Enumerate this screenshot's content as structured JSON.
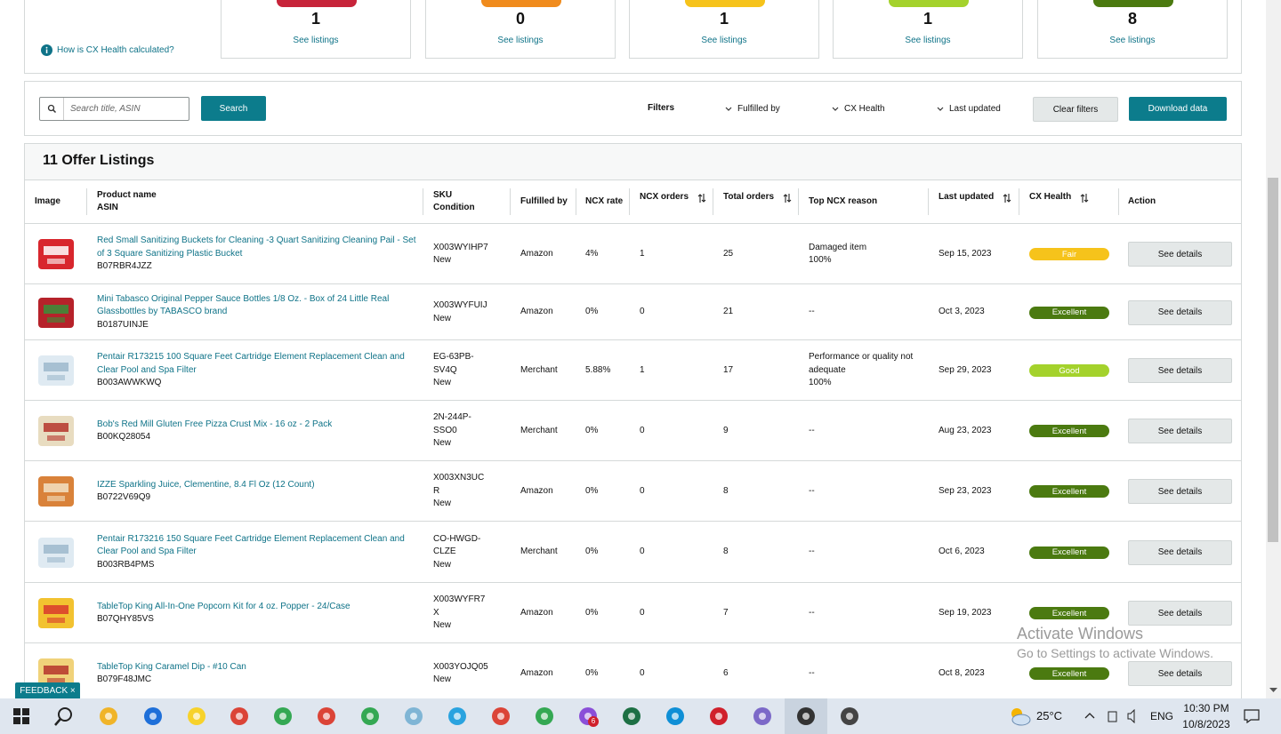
{
  "summary": {
    "help_link": "How is CX Health calculated?",
    "cards": [
      {
        "count": 1,
        "link": "See listings",
        "color": "#c7243a"
      },
      {
        "count": 0,
        "link": "See listings",
        "color": "#f08b1d"
      },
      {
        "count": 1,
        "link": "See listings",
        "color": "#f6c31b"
      },
      {
        "count": 1,
        "link": "See listings",
        "color": "#a4d22c"
      },
      {
        "count": 8,
        "link": "See listings",
        "color": "#4b7a10"
      }
    ]
  },
  "toolbar": {
    "search_placeholder": "Search title, ASIN",
    "search_button": "Search",
    "filters_label": "Filters",
    "filters": [
      "Fulfilled by",
      "CX Health",
      "Last updated"
    ],
    "clear_button": "Clear filters",
    "download_button": "Download data"
  },
  "table": {
    "title": "11 Offer Listings",
    "headers": [
      {
        "lines": [
          "Image"
        ]
      },
      {
        "lines": [
          "Product name",
          "ASIN"
        ]
      },
      {
        "lines": [
          "SKU",
          "Condition"
        ]
      },
      {
        "lines": [
          "Fulfilled by"
        ]
      },
      {
        "lines": [
          "NCX rate"
        ]
      },
      {
        "lines": [
          "NCX orders"
        ],
        "sortable": true
      },
      {
        "lines": [
          "Total orders"
        ],
        "sortable": true
      },
      {
        "lines": [
          "Top NCX reason"
        ]
      },
      {
        "lines": [
          "Last updated"
        ],
        "sortable": true
      },
      {
        "lines": [
          "CX Health"
        ],
        "sortable": true
      },
      {
        "lines": [
          "Action"
        ]
      }
    ],
    "rows": [
      {
        "product": "Red Small Sanitizing Buckets for Cleaning -3 Quart Sanitizing Cleaning Pail - Set of 3 Square Sanitizing Plastic Bucket",
        "asin": "B07RBR4JZZ",
        "sku": "X003WYIHP7",
        "condition": "New",
        "fulfilled_by": "Amazon",
        "ncx_rate": "4%",
        "ncx_orders": 1,
        "total_orders": 25,
        "reason": "Damaged item",
        "reason_share": "100%",
        "last_updated": "Sep 15, 2023",
        "health": "Fair",
        "health_color": "#f6c31b",
        "action": "See details"
      },
      {
        "product": "Mini Tabasco Original Pepper Sauce Bottles 1/8 Oz. - Box of 24 Little Real Glassbottles by TABASCO brand",
        "asin": "B0187UINJE",
        "sku": "X003WYFUIJ",
        "condition": "New",
        "fulfilled_by": "Amazon",
        "ncx_rate": "0%",
        "ncx_orders": 0,
        "total_orders": 21,
        "reason": "--",
        "last_updated": "Oct 3, 2023",
        "health": "Excellent",
        "health_color": "#4b7a10",
        "action": "See details"
      },
      {
        "product": "Pentair R173215 100 Square Feet Cartridge Element Replacement Clean and Clear Pool and Spa Filter",
        "asin": "B003AWWKWQ",
        "sku": "EG-63PB-SV4Q",
        "condition": "New",
        "fulfilled_by": "Merchant",
        "ncx_rate": "5.88%",
        "ncx_orders": 1,
        "total_orders": 17,
        "reason": "Performance or quality not adequate",
        "reason_share": "100%",
        "last_updated": "Sep 29, 2023",
        "health": "Good",
        "health_color": "#a4d22c",
        "action": "See details"
      },
      {
        "product": "Bob's Red Mill Gluten Free Pizza Crust Mix - 16 oz - 2 Pack",
        "asin": "B00KQ28054",
        "sku": "2N-244P-SSO0",
        "condition": "New",
        "fulfilled_by": "Merchant",
        "ncx_rate": "0%",
        "ncx_orders": 0,
        "total_orders": 9,
        "reason": "--",
        "last_updated": "Aug 23, 2023",
        "health": "Excellent",
        "health_color": "#4b7a10",
        "action": "See details"
      },
      {
        "product": "IZZE Sparkling Juice, Clementine, 8.4 Fl Oz (12 Count)",
        "asin": "B0722V69Q9",
        "sku": "X003XN3UCR",
        "condition": "New",
        "fulfilled_by": "Amazon",
        "ncx_rate": "0%",
        "ncx_orders": 0,
        "total_orders": 8,
        "reason": "--",
        "last_updated": "Sep 23, 2023",
        "health": "Excellent",
        "health_color": "#4b7a10",
        "action": "See details"
      },
      {
        "product": "Pentair R173216 150 Square Feet Cartridge Element Replacement Clean and Clear Pool and Spa Filter",
        "asin": "B003RB4PMS",
        "sku": "CO-HWGD-CLZE",
        "condition": "New",
        "fulfilled_by": "Merchant",
        "ncx_rate": "0%",
        "ncx_orders": 0,
        "total_orders": 8,
        "reason": "--",
        "last_updated": "Oct 6, 2023",
        "health": "Excellent",
        "health_color": "#4b7a10",
        "action": "See details"
      },
      {
        "product": "TableTop King All-In-One Popcorn Kit for 4 oz. Popper - 24/Case",
        "asin": "B07QHY85VS",
        "sku": "X003WYFR7X",
        "condition": "New",
        "fulfilled_by": "Amazon",
        "ncx_rate": "0%",
        "ncx_orders": 0,
        "total_orders": 7,
        "reason": "--",
        "last_updated": "Sep 19, 2023",
        "health": "Excellent",
        "health_color": "#4b7a10",
        "action": "See details"
      },
      {
        "product": "TableTop King Caramel Dip - #10 Can",
        "asin": "B079F48JMC",
        "sku": "X003YOJQ05",
        "condition": "New",
        "fulfilled_by": "Amazon",
        "ncx_rate": "0%",
        "ncx_orders": 0,
        "total_orders": 6,
        "reason": "--",
        "last_updated": "Oct 8, 2023",
        "health": "Excellent",
        "health_color": "#4b7a10",
        "action": "See details"
      }
    ]
  },
  "feedback": "FEEDBACK ×",
  "watermark": {
    "title": "Activate Windows",
    "subtitle": "Go to Settings to activate Windows."
  },
  "taskbar": {
    "badge": "6",
    "temperature": "25°C",
    "language": "ENG",
    "time": "10:30 PM",
    "date": "10/8/2023"
  }
}
